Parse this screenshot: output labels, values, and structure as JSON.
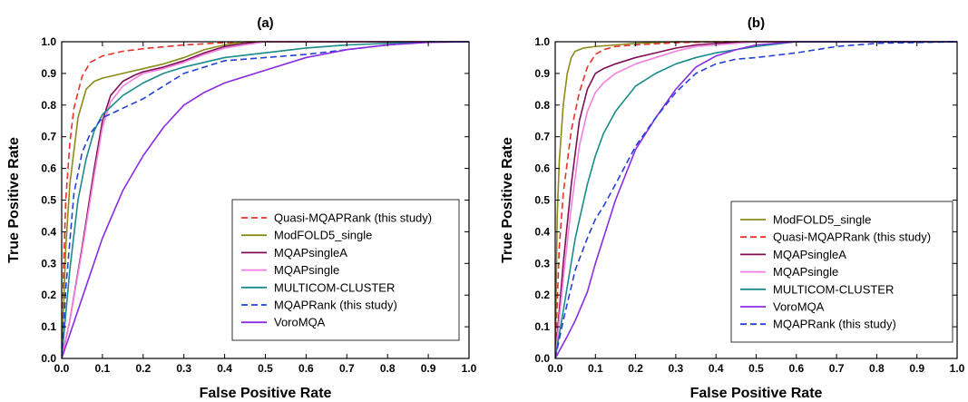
{
  "chart_data": [
    {
      "type": "line",
      "title": "(a)",
      "xlabel": "False Positive Rate",
      "ylabel": "True Positive Rate",
      "xlim": [
        0,
        1
      ],
      "ylim": [
        0,
        1
      ],
      "xticks": [
        "0.0",
        "0.1",
        "0.2",
        "0.3",
        "0.4",
        "0.5",
        "0.6",
        "0.7",
        "0.8",
        "0.9",
        "1.0"
      ],
      "yticks": [
        "0.0",
        "0.1",
        "0.2",
        "0.3",
        "0.4",
        "0.5",
        "0.6",
        "0.7",
        "0.8",
        "0.9",
        "1.0"
      ],
      "grid": false,
      "legend_position": "bottom-right",
      "series": [
        {
          "name": "Quasi-MQAPRank (this study)",
          "color": "#e8312a",
          "dash": "dashed",
          "x": [
            0,
            0.005,
            0.01,
            0.02,
            0.03,
            0.05,
            0.07,
            0.1,
            0.15,
            0.2,
            0.3,
            0.4,
            0.5,
            1
          ],
          "y": [
            0,
            0.3,
            0.5,
            0.68,
            0.79,
            0.89,
            0.935,
            0.955,
            0.97,
            0.978,
            0.99,
            0.997,
            1,
            1
          ]
        },
        {
          "name": "ModFOLD5_single",
          "color": "#8b8b1a",
          "dash": "solid",
          "x": [
            0,
            0.01,
            0.02,
            0.04,
            0.06,
            0.08,
            0.1,
            0.15,
            0.2,
            0.25,
            0.3,
            0.35,
            0.4,
            0.45,
            0.5,
            1
          ],
          "y": [
            0,
            0.35,
            0.55,
            0.76,
            0.85,
            0.875,
            0.885,
            0.9,
            0.915,
            0.93,
            0.95,
            0.975,
            0.99,
            1,
            1,
            1
          ]
        },
        {
          "name": "MQAPsingleA",
          "color": "#800e55",
          "dash": "solid",
          "x": [
            0,
            0.02,
            0.05,
            0.08,
            0.1,
            0.12,
            0.15,
            0.18,
            0.2,
            0.25,
            0.3,
            0.35,
            0.4,
            0.45,
            0.5,
            1
          ],
          "y": [
            0,
            0.12,
            0.35,
            0.6,
            0.75,
            0.83,
            0.875,
            0.895,
            0.905,
            0.92,
            0.94,
            0.965,
            0.985,
            0.995,
            1,
            1
          ]
        },
        {
          "name": "MQAPsingle",
          "color": "#f07fe0",
          "dash": "solid",
          "x": [
            0,
            0.02,
            0.05,
            0.08,
            0.1,
            0.12,
            0.15,
            0.18,
            0.2,
            0.25,
            0.3,
            0.35,
            0.4,
            0.45,
            0.5,
            1
          ],
          "y": [
            0,
            0.12,
            0.34,
            0.58,
            0.73,
            0.81,
            0.86,
            0.885,
            0.9,
            0.915,
            0.935,
            0.96,
            0.98,
            0.99,
            1,
            1
          ]
        },
        {
          "name": "MULTICOM-CLUSTER",
          "color": "#1a8a8a",
          "dash": "solid",
          "x": [
            0,
            0.02,
            0.04,
            0.06,
            0.08,
            0.1,
            0.15,
            0.2,
            0.25,
            0.3,
            0.4,
            0.5,
            0.6,
            0.7,
            0.8,
            0.9,
            1
          ],
          "y": [
            0,
            0.28,
            0.5,
            0.63,
            0.72,
            0.77,
            0.83,
            0.87,
            0.9,
            0.92,
            0.95,
            0.965,
            0.98,
            0.99,
            0.995,
            1,
            1
          ]
        },
        {
          "name": "MQAPRank (this study)",
          "color": "#2440d8",
          "dash": "dashed",
          "x": [
            0,
            0.01,
            0.03,
            0.05,
            0.07,
            0.1,
            0.15,
            0.2,
            0.25,
            0.3,
            0.4,
            0.5,
            0.6,
            0.7,
            0.8,
            0.9,
            1
          ],
          "y": [
            0,
            0.22,
            0.52,
            0.65,
            0.71,
            0.76,
            0.79,
            0.82,
            0.86,
            0.9,
            0.94,
            0.95,
            0.96,
            0.975,
            0.99,
            1,
            1
          ]
        },
        {
          "name": "VoroMQA",
          "color": "#8a2be2",
          "dash": "solid",
          "x": [
            0,
            0.05,
            0.1,
            0.15,
            0.2,
            0.25,
            0.3,
            0.35,
            0.4,
            0.5,
            0.6,
            0.7,
            0.8,
            0.9,
            1
          ],
          "y": [
            0,
            0.19,
            0.38,
            0.53,
            0.64,
            0.73,
            0.8,
            0.84,
            0.87,
            0.91,
            0.95,
            0.975,
            0.99,
            0.998,
            1
          ]
        }
      ]
    },
    {
      "type": "line",
      "title": "(b)",
      "xlabel": "False Positive Rate",
      "ylabel": "True Positive Rate",
      "xlim": [
        0,
        1
      ],
      "ylim": [
        0,
        1
      ],
      "xticks": [
        "0.0",
        "0.1",
        "0.2",
        "0.3",
        "0.4",
        "0.5",
        "0.6",
        "0.7",
        "0.8",
        "0.9",
        "1.0"
      ],
      "yticks": [
        "0.0",
        "0.1",
        "0.2",
        "0.3",
        "0.4",
        "0.5",
        "0.6",
        "0.7",
        "0.8",
        "0.9",
        "1.0"
      ],
      "grid": false,
      "legend_position": "bottom-right",
      "series": [
        {
          "name": "ModFOLD5_single",
          "color": "#8b8b1a",
          "dash": "solid",
          "x": [
            0,
            0.005,
            0.01,
            0.02,
            0.03,
            0.04,
            0.05,
            0.07,
            0.1,
            0.15,
            0.2,
            0.3,
            0.4,
            1
          ],
          "y": [
            0,
            0.45,
            0.62,
            0.8,
            0.9,
            0.95,
            0.97,
            0.98,
            0.985,
            0.99,
            0.995,
            1,
            1,
            1
          ]
        },
        {
          "name": "Quasi-MQAPRank (this study)",
          "color": "#e8312a",
          "dash": "dashed",
          "x": [
            0,
            0.01,
            0.02,
            0.04,
            0.06,
            0.08,
            0.1,
            0.12,
            0.15,
            0.2,
            0.3,
            0.4,
            1
          ],
          "y": [
            0,
            0.35,
            0.52,
            0.72,
            0.84,
            0.92,
            0.96,
            0.975,
            0.985,
            0.99,
            0.997,
            1,
            1
          ]
        },
        {
          "name": "MQAPsingleA",
          "color": "#800e55",
          "dash": "solid",
          "x": [
            0,
            0.02,
            0.04,
            0.06,
            0.08,
            0.1,
            0.12,
            0.15,
            0.2,
            0.25,
            0.3,
            0.35,
            0.4,
            0.5,
            1
          ],
          "y": [
            0,
            0.3,
            0.55,
            0.75,
            0.85,
            0.9,
            0.915,
            0.93,
            0.95,
            0.965,
            0.98,
            0.99,
            0.995,
            1,
            1
          ]
        },
        {
          "name": "MQAPsingle",
          "color": "#f07fe0",
          "dash": "solid",
          "x": [
            0,
            0.02,
            0.04,
            0.06,
            0.08,
            0.1,
            0.12,
            0.15,
            0.2,
            0.25,
            0.3,
            0.35,
            0.4,
            0.5,
            1
          ],
          "y": [
            0,
            0.25,
            0.48,
            0.67,
            0.78,
            0.84,
            0.87,
            0.9,
            0.93,
            0.95,
            0.97,
            0.985,
            0.99,
            1,
            1
          ]
        },
        {
          "name": "MULTICOM-CLUSTER",
          "color": "#1a8a8a",
          "dash": "solid",
          "x": [
            0,
            0.02,
            0.05,
            0.08,
            0.1,
            0.12,
            0.15,
            0.2,
            0.25,
            0.3,
            0.35,
            0.4,
            0.5,
            0.6,
            1
          ],
          "y": [
            0,
            0.15,
            0.38,
            0.55,
            0.64,
            0.71,
            0.78,
            0.86,
            0.9,
            0.93,
            0.95,
            0.965,
            0.985,
            1,
            1
          ]
        },
        {
          "name": "VoroMQA",
          "color": "#8a2be2",
          "dash": "solid",
          "x": [
            0,
            0.03,
            0.05,
            0.08,
            0.1,
            0.15,
            0.2,
            0.25,
            0.3,
            0.35,
            0.4,
            0.45,
            0.5,
            0.6,
            1
          ],
          "y": [
            0,
            0.07,
            0.12,
            0.21,
            0.3,
            0.5,
            0.66,
            0.76,
            0.85,
            0.92,
            0.955,
            0.975,
            0.99,
            1,
            1
          ]
        },
        {
          "name": "MQAPRank (this study)",
          "color": "#2440d8",
          "dash": "dashed",
          "x": [
            0,
            0.02,
            0.05,
            0.08,
            0.1,
            0.12,
            0.15,
            0.2,
            0.25,
            0.3,
            0.35,
            0.4,
            0.45,
            0.5,
            0.6,
            0.7,
            0.8,
            1
          ],
          "y": [
            0,
            0.12,
            0.28,
            0.38,
            0.44,
            0.48,
            0.55,
            0.67,
            0.76,
            0.84,
            0.9,
            0.93,
            0.945,
            0.95,
            0.965,
            0.985,
            0.995,
            1
          ]
        }
      ]
    }
  ]
}
